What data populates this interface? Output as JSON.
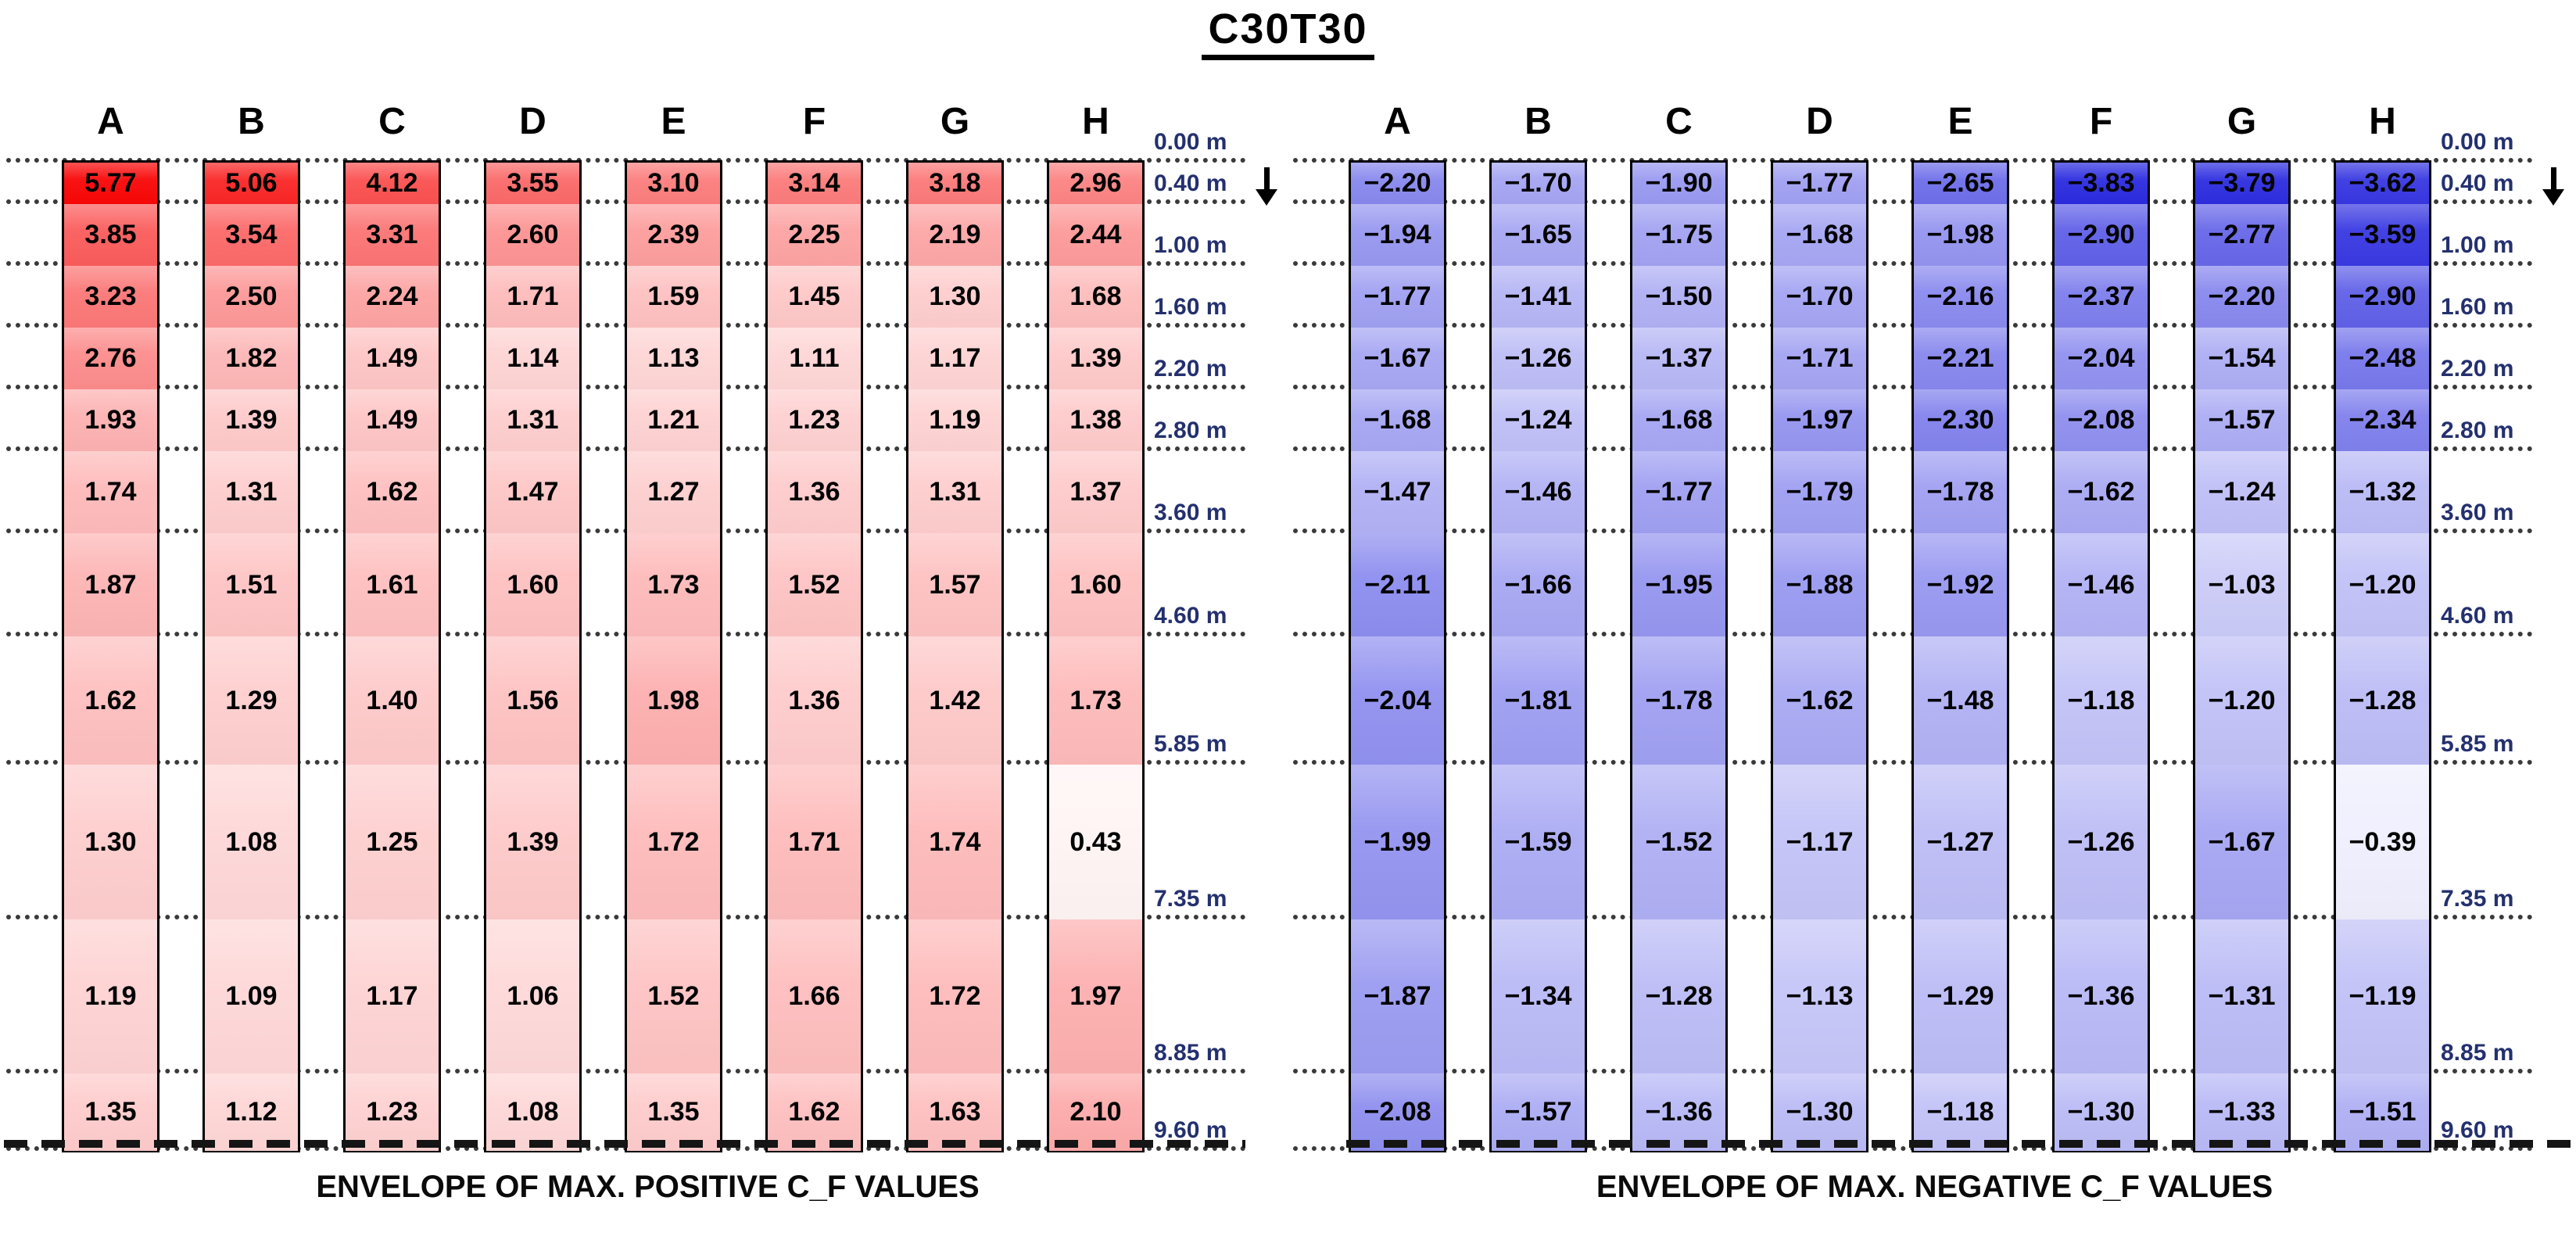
{
  "chart_data": {
    "type": "heatmap",
    "title": "C30T30",
    "columns": [
      "A",
      "B",
      "C",
      "D",
      "E",
      "F",
      "G",
      "H"
    ],
    "depth_axis_unit": "m",
    "depth_boundaries_m": [
      0.0,
      0.4,
      1.0,
      1.6,
      2.2,
      2.8,
      3.6,
      4.6,
      5.85,
      7.35,
      8.85,
      9.6
    ],
    "depth_tick_labels": [
      "0.00 m",
      "0.40 m",
      "1.00 m",
      "1.60 m",
      "2.20 m",
      "2.80 m",
      "3.60 m",
      "4.60 m",
      "5.85 m",
      "7.35 m",
      "8.85 m",
      "9.60 m"
    ],
    "direction_arrow_icon": "down-arrow",
    "direction_arrow_at_label": "0.40 m",
    "legend_position": "none",
    "grid": "dotted-row-boundaries",
    "panels": [
      {
        "id": "max-positive",
        "caption": "ENVELOPE OF MAX. POSITIVE C_F VALUES",
        "colormap": {
          "light": "#FFF4F4",
          "dark": "#F90606"
        },
        "values_by_column": {
          "A": [
            "5.77",
            "3.85",
            "3.23",
            "2.76",
            "1.93",
            "1.74",
            "1.87",
            "1.62",
            "1.30",
            "1.19",
            "1.35"
          ],
          "B": [
            "5.06",
            "3.54",
            "2.50",
            "1.82",
            "1.39",
            "1.31",
            "1.51",
            "1.29",
            "1.08",
            "1.09",
            "1.12"
          ],
          "C": [
            "4.12",
            "3.31",
            "2.24",
            "1.49",
            "1.49",
            "1.62",
            "1.61",
            "1.40",
            "1.25",
            "1.17",
            "1.23"
          ],
          "D": [
            "3.55",
            "2.60",
            "1.71",
            "1.14",
            "1.31",
            "1.47",
            "1.60",
            "1.56",
            "1.39",
            "1.06",
            "1.08"
          ],
          "E": [
            "3.10",
            "2.39",
            "1.59",
            "1.13",
            "1.21",
            "1.27",
            "1.73",
            "1.98",
            "1.72",
            "1.52",
            "1.35"
          ],
          "F": [
            "3.14",
            "2.25",
            "1.45",
            "1.11",
            "1.23",
            "1.36",
            "1.52",
            "1.36",
            "1.71",
            "1.66",
            "1.62"
          ],
          "G": [
            "3.18",
            "2.19",
            "1.30",
            "1.17",
            "1.19",
            "1.31",
            "1.57",
            "1.42",
            "1.74",
            "1.72",
            "1.63"
          ],
          "H": [
            "2.96",
            "2.44",
            "1.68",
            "1.39",
            "1.38",
            "1.37",
            "1.60",
            "1.73",
            "0.43",
            "1.97",
            "2.10"
          ]
        }
      },
      {
        "id": "max-negative",
        "caption": "ENVELOPE OF MAX. NEGATIVE C_F VALUES",
        "colormap": {
          "light": "#EFEFFE",
          "dark": "#2B2BE0"
        },
        "values_by_column": {
          "A": [
            "-2.20",
            "-1.94",
            "-1.77",
            "-1.67",
            "-1.68",
            "-1.47",
            "-2.11",
            "-2.04",
            "-1.99",
            "-1.87",
            "-2.08"
          ],
          "B": [
            "-1.70",
            "-1.65",
            "-1.41",
            "-1.26",
            "-1.24",
            "-1.46",
            "-1.66",
            "-1.81",
            "-1.59",
            "-1.34",
            "-1.57"
          ],
          "C": [
            "-1.90",
            "-1.75",
            "-1.50",
            "-1.37",
            "-1.68",
            "-1.77",
            "-1.95",
            "-1.78",
            "-1.52",
            "-1.28",
            "-1.36"
          ],
          "D": [
            "-1.77",
            "-1.68",
            "-1.70",
            "-1.71",
            "-1.97",
            "-1.79",
            "-1.88",
            "-1.62",
            "-1.17",
            "-1.13",
            "-1.30"
          ],
          "E": [
            "-2.65",
            "-1.98",
            "-2.16",
            "-2.21",
            "-2.30",
            "-1.78",
            "-1.92",
            "-1.48",
            "-1.27",
            "-1.29",
            "-1.18"
          ],
          "F": [
            "-3.83",
            "-2.90",
            "-2.37",
            "-2.04",
            "-2.08",
            "-1.62",
            "-1.46",
            "-1.18",
            "-1.26",
            "-1.36",
            "-1.30"
          ],
          "G": [
            "-3.79",
            "-2.77",
            "-2.20",
            "-1.54",
            "-1.57",
            "-1.24",
            "-1.03",
            "-1.20",
            "-1.67",
            "-1.31",
            "-1.33"
          ],
          "H": [
            "-3.62",
            "-3.59",
            "-2.90",
            "-2.48",
            "-2.34",
            "-1.32",
            "-1.20",
            "-1.28",
            "-0.39",
            "-1.19",
            "-1.51"
          ]
        }
      }
    ]
  }
}
